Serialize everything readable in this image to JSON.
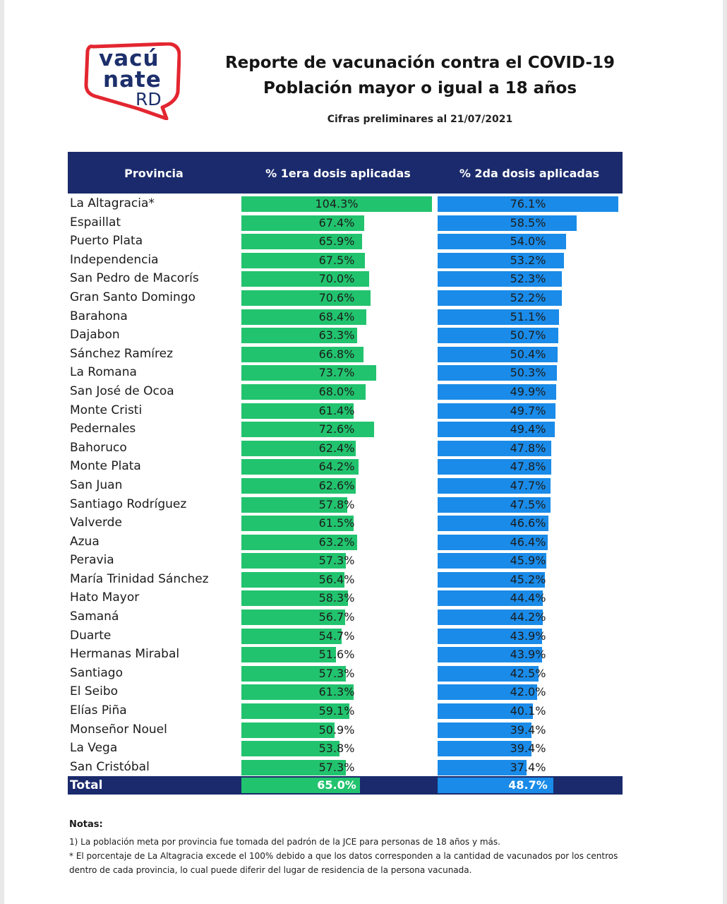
{
  "logo": {
    "line1": "vacú",
    "line2": "nate",
    "line3": "RD",
    "outline_color": "#e32630",
    "text_color": "#1d2f6b"
  },
  "header": {
    "title": "Reporte de vacunación contra el COVID-19",
    "subtitle": "Población mayor o igual a 18 años",
    "date_note": "Cifras preliminares al  21/07/2021"
  },
  "table": {
    "columns": [
      "Provincia",
      "% 1era dosis aplicadas",
      "% 2da dosis aplicadas"
    ],
    "colors": {
      "header_bg": "#1a2a6c",
      "dose1_bar": "#22c36e",
      "dose2_bar": "#1a8be8"
    },
    "rows": [
      {
        "province": "La Altagracia*",
        "dose1": "104.3%",
        "dose2": "76.1%",
        "d1": 104.3,
        "d2": 76.1
      },
      {
        "province": "Espaillat",
        "dose1": "67.4%",
        "dose2": "58.5%",
        "d1": 67.4,
        "d2": 58.5
      },
      {
        "province": "Puerto Plata",
        "dose1": "65.9%",
        "dose2": "54.0%",
        "d1": 65.9,
        "d2": 54.0
      },
      {
        "province": "Independencia",
        "dose1": "67.5%",
        "dose2": "53.2%",
        "d1": 67.5,
        "d2": 53.2
      },
      {
        "province": "San Pedro de Macorís",
        "dose1": "70.0%",
        "dose2": "52.3%",
        "d1": 70.0,
        "d2": 52.3
      },
      {
        "province": "Gran Santo Domingo",
        "dose1": "70.6%",
        "dose2": "52.2%",
        "d1": 70.6,
        "d2": 52.2
      },
      {
        "province": "Barahona",
        "dose1": "68.4%",
        "dose2": "51.1%",
        "d1": 68.4,
        "d2": 51.1
      },
      {
        "province": "Dajabon",
        "dose1": "63.3%",
        "dose2": "50.7%",
        "d1": 63.3,
        "d2": 50.7
      },
      {
        "province": "Sánchez Ramírez",
        "dose1": "66.8%",
        "dose2": "50.4%",
        "d1": 66.8,
        "d2": 50.4
      },
      {
        "province": "La Romana",
        "dose1": "73.7%",
        "dose2": "50.3%",
        "d1": 73.7,
        "d2": 50.3
      },
      {
        "province": "San José de Ocoa",
        "dose1": "68.0%",
        "dose2": "49.9%",
        "d1": 68.0,
        "d2": 49.9
      },
      {
        "province": "Monte Cristi",
        "dose1": "61.4%",
        "dose2": "49.7%",
        "d1": 61.4,
        "d2": 49.7
      },
      {
        "province": "Pedernales",
        "dose1": "72.6%",
        "dose2": "49.4%",
        "d1": 72.6,
        "d2": 49.4
      },
      {
        "province": "Bahoruco",
        "dose1": "62.4%",
        "dose2": "47.8%",
        "d1": 62.4,
        "d2": 47.8
      },
      {
        "province": "Monte Plata",
        "dose1": "64.2%",
        "dose2": "47.8%",
        "d1": 64.2,
        "d2": 47.8
      },
      {
        "province": "San Juan",
        "dose1": "62.6%",
        "dose2": "47.7%",
        "d1": 62.6,
        "d2": 47.7
      },
      {
        "province": "Santiago Rodríguez",
        "dose1": "57.8%",
        "dose2": "47.5%",
        "d1": 57.8,
        "d2": 47.5
      },
      {
        "province": "Valverde",
        "dose1": "61.5%",
        "dose2": "46.6%",
        "d1": 61.5,
        "d2": 46.6
      },
      {
        "province": "Azua",
        "dose1": "63.2%",
        "dose2": "46.4%",
        "d1": 63.2,
        "d2": 46.4
      },
      {
        "province": "Peravia",
        "dose1": "57.3%",
        "dose2": "45.9%",
        "d1": 57.3,
        "d2": 45.9
      },
      {
        "province": "María Trinidad Sánchez",
        "dose1": "56.4%",
        "dose2": "45.2%",
        "d1": 56.4,
        "d2": 45.2
      },
      {
        "province": "Hato Mayor",
        "dose1": "58.3%",
        "dose2": "44.4%",
        "d1": 58.3,
        "d2": 44.4
      },
      {
        "province": "Samaná",
        "dose1": "56.7%",
        "dose2": "44.2%",
        "d1": 56.7,
        "d2": 44.2
      },
      {
        "province": "Duarte",
        "dose1": "54.7%",
        "dose2": "43.9%",
        "d1": 54.7,
        "d2": 43.9
      },
      {
        "province": "Hermanas Mirabal",
        "dose1": "51.6%",
        "dose2": "43.9%",
        "d1": 51.6,
        "d2": 43.9
      },
      {
        "province": "Santiago",
        "dose1": "57.3%",
        "dose2": "42.5%",
        "d1": 57.3,
        "d2": 42.5
      },
      {
        "province": "El Seibo",
        "dose1": "61.3%",
        "dose2": "42.0%",
        "d1": 61.3,
        "d2": 42.0
      },
      {
        "province": "Elías Piña",
        "dose1": "59.1%",
        "dose2": "40.1%",
        "d1": 59.1,
        "d2": 40.1
      },
      {
        "province": "Monseñor Nouel",
        "dose1": "50.9%",
        "dose2": "39.4%",
        "d1": 50.9,
        "d2": 39.4
      },
      {
        "province": "La Vega",
        "dose1": "53.8%",
        "dose2": "39.4%",
        "d1": 53.8,
        "d2": 39.4
      },
      {
        "province": "San Cristóbal",
        "dose1": "57.3%",
        "dose2": "37.4%",
        "d1": 57.3,
        "d2": 37.4
      }
    ],
    "total": {
      "label": "Total",
      "dose1": "65.0%",
      "dose2": "48.7%",
      "d1": 65.0,
      "d2": 48.7
    }
  },
  "notes": {
    "heading": "Notas:",
    "note1": "1) La población meta por provincia fue tomada del padrón de la JCE para personas de 18 años y más.",
    "note2": "* El porcentaje de La Altagracia excede el 100% debido a que los datos corresponden a la cantidad de vacunados por los centros dentro de cada provincia, lo cual puede diferir del lugar de residencia de la persona vacunada."
  }
}
